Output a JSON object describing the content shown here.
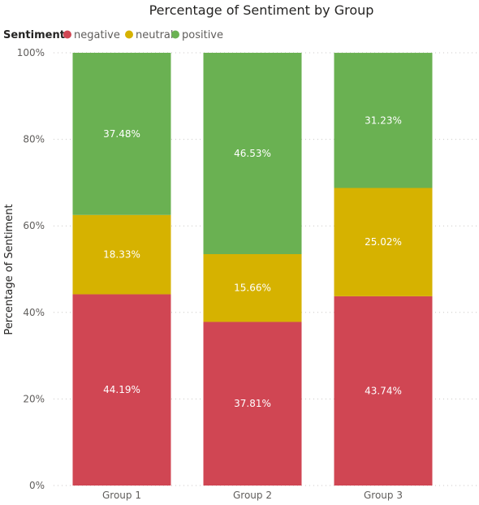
{
  "chart_data": {
    "type": "bar",
    "stacked": "100%",
    "title": "Percentage of Sentiment by Group",
    "legend_title": "Sentiment",
    "legend_position": "top-left",
    "ylabel": "Percentage of Sentiment",
    "xlabel": "",
    "ylim": [
      0,
      100
    ],
    "yticks": [
      "0%",
      "20%",
      "40%",
      "60%",
      "80%",
      "100%"
    ],
    "grid": true,
    "categories": [
      "Group 1",
      "Group 2",
      "Group 3"
    ],
    "series": [
      {
        "name": "negative",
        "color": "#d04653",
        "values": [
          44.19,
          37.81,
          43.74
        ],
        "labels": [
          "44.19%",
          "37.81%",
          "43.74%"
        ]
      },
      {
        "name": "neutral",
        "color": "#d6b200",
        "values": [
          18.33,
          15.66,
          25.02
        ],
        "labels": [
          "18.33%",
          "15.66%",
          "25.02%"
        ]
      },
      {
        "name": "positive",
        "color": "#6ab152",
        "values": [
          37.48,
          46.53,
          31.23
        ],
        "labels": [
          "37.48%",
          "46.53%",
          "31.23%"
        ]
      }
    ]
  }
}
